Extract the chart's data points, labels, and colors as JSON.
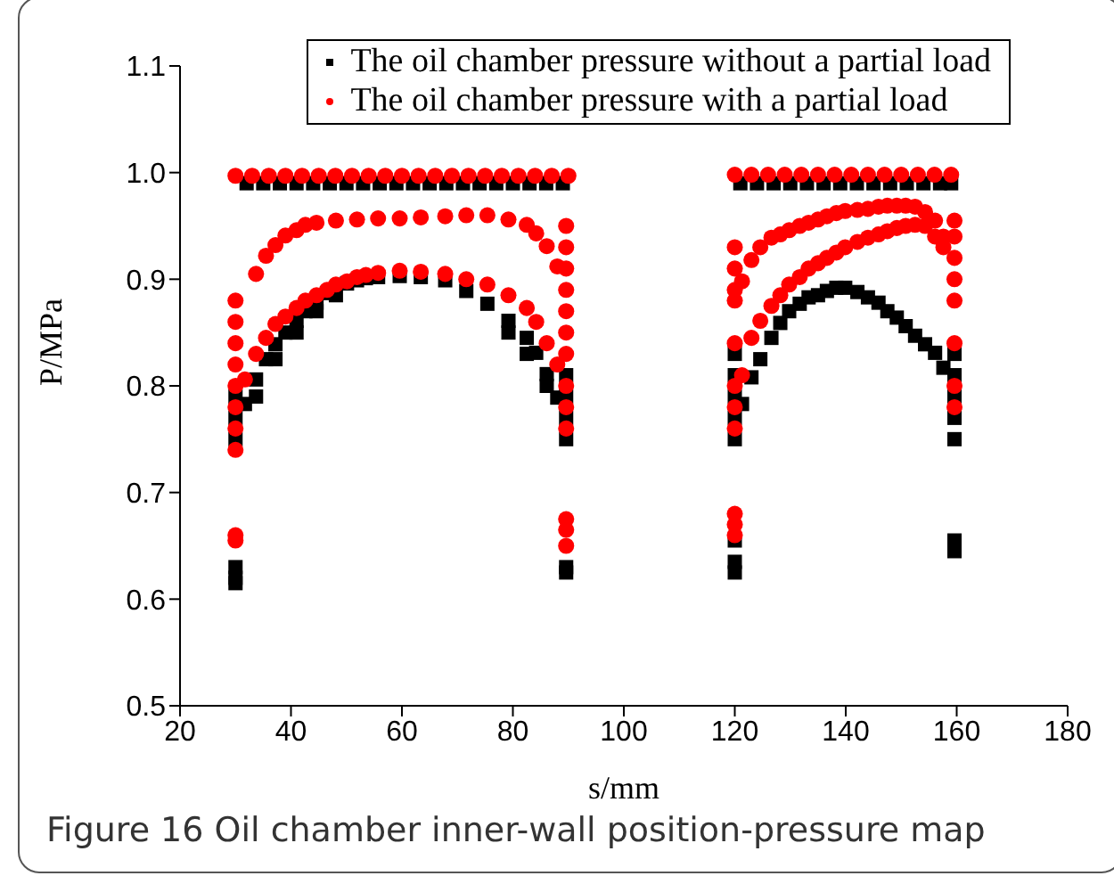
{
  "chart_data": {
    "type": "scatter",
    "xlabel": "s/mm",
    "ylabel": "P/MPa",
    "annotations": [
      "Figure 16  Oil chamber inner-wall position-pressure map"
    ],
    "xlim": [
      20,
      180
    ],
    "xticks": [
      20,
      40,
      60,
      80,
      100,
      120,
      140,
      160,
      180
    ],
    "ylim": [
      0.5,
      1.1
    ],
    "yticks": [
      0.5,
      0.6,
      0.7,
      0.8,
      0.9,
      {
        "value": 1,
        "label": "1.0"
      },
      1.1
    ],
    "grid": false,
    "legend": "top right",
    "series": [
      {
        "name": "The oil chamber pressure without a partial load",
        "color": "#000000",
        "marker": "square",
        "x": [
          30,
          30,
          30,
          30,
          30,
          30,
          31.7,
          33.7,
          35.5,
          37.2,
          39,
          41,
          42.6,
          44.6,
          46.5,
          50.1,
          51.9,
          53.5,
          55.7,
          59.6,
          63.4,
          67.8,
          71.6,
          75.4,
          79.2,
          82.5,
          84.2,
          86.1,
          88,
          33.7,
          37.2,
          41,
          44.6,
          48.1,
          79.2,
          82.5,
          86.1,
          89.6,
          89.6,
          89.6,
          89.6,
          89.6,
          89.6,
          32,
          35,
          38,
          41,
          44,
          47,
          50,
          53,
          56,
          59,
          62,
          65,
          68,
          71,
          74,
          77,
          80,
          83,
          86,
          89,
          120,
          120,
          120,
          120,
          120,
          120,
          120,
          120,
          121.3,
          123,
          124.6,
          126.6,
          128.2,
          129.8,
          131.7,
          133.3,
          135,
          136.6,
          138.3,
          139.9,
          142.1,
          144,
          145.9,
          147.5,
          149.2,
          150.8,
          152.5,
          154.3,
          156.1,
          157.6,
          159.6,
          159.6,
          159.6,
          159.6,
          159.6,
          159.6,
          159.6,
          121,
          124,
          127,
          130,
          133,
          136,
          139,
          142,
          145,
          148,
          151,
          154,
          157,
          159
        ],
        "values": [
          0.79,
          0.77,
          0.75,
          0.63,
          0.62,
          0.615,
          0.783,
          0.806,
          0.825,
          0.839,
          0.85,
          0.861,
          0.87,
          0.878,
          0.887,
          0.896,
          0.899,
          0.901,
          0.902,
          0.903,
          0.902,
          0.899,
          0.889,
          0.877,
          0.861,
          0.845,
          0.831,
          0.811,
          0.789,
          0.79,
          0.825,
          0.85,
          0.87,
          0.885,
          0.85,
          0.83,
          0.8,
          0.81,
          0.79,
          0.77,
          0.75,
          0.63,
          0.625,
          0.99,
          0.99,
          0.99,
          0.99,
          0.99,
          0.99,
          0.99,
          0.99,
          0.99,
          0.99,
          0.99,
          0.99,
          0.99,
          0.99,
          0.99,
          0.99,
          0.99,
          0.99,
          0.99,
          0.99,
          0.83,
          0.81,
          0.79,
          0.77,
          0.75,
          0.655,
          0.635,
          0.625,
          0.783,
          0.808,
          0.825,
          0.845,
          0.859,
          0.87,
          0.877,
          0.883,
          0.885,
          0.889,
          0.892,
          0.892,
          0.888,
          0.883,
          0.878,
          0.87,
          0.864,
          0.856,
          0.847,
          0.839,
          0.831,
          0.817,
          0.83,
          0.81,
          0.79,
          0.77,
          0.75,
          0.655,
          0.645,
          0.99,
          0.99,
          0.99,
          0.99,
          0.99,
          0.99,
          0.99,
          0.99,
          0.99,
          0.99,
          0.99,
          0.99,
          0.99,
          0.99
        ]
      },
      {
        "name": "The oil chamber pressure with a partial load",
        "color": "#ff0000",
        "marker": "circle",
        "x": [
          30,
          30,
          30,
          30,
          30,
          30,
          30,
          30,
          30,
          30,
          33.7,
          35.5,
          37.2,
          39,
          41,
          42.6,
          44.6,
          48.1,
          51.9,
          55.7,
          59.6,
          63.4,
          67.8,
          71.6,
          75.4,
          79.2,
          82.5,
          84.2,
          86.1,
          88,
          31.7,
          33.7,
          35.5,
          37.2,
          39,
          41,
          42.6,
          44.6,
          46.5,
          48.1,
          50.1,
          51.9,
          53.5,
          55.7,
          59.6,
          63.4,
          67.8,
          71.6,
          75.4,
          79.2,
          82.5,
          84.2,
          86.1,
          88,
          89.6,
          89.6,
          89.6,
          89.6,
          89.6,
          89.6,
          89.6,
          89.6,
          89.6,
          89.6,
          89.6,
          89.6,
          89.6,
          30,
          33,
          36,
          39,
          42,
          45,
          48,
          51,
          54,
          57,
          60,
          63,
          66,
          69,
          72,
          75,
          78,
          81,
          84,
          87,
          90,
          120,
          120,
          120,
          120,
          120,
          120,
          120,
          120,
          120,
          120,
          120,
          121.3,
          123,
          124.6,
          126.6,
          128.2,
          129.8,
          131.7,
          133.3,
          135,
          136.6,
          138.3,
          139.9,
          142.1,
          144,
          145.9,
          147.5,
          149.2,
          150.8,
          152.5,
          154.3,
          156.1,
          157.6,
          121.3,
          123,
          124.6,
          126.6,
          128.2,
          129.8,
          131.7,
          133.3,
          135,
          136.6,
          138.3,
          139.9,
          142.1,
          144,
          145.9,
          147.5,
          149.2,
          150.8,
          152.5,
          154.3,
          156.1,
          157.6,
          159.6,
          159.6,
          159.6,
          159.6,
          159.6,
          159.6,
          159.6,
          159.6,
          120,
          123,
          126,
          129,
          132,
          135,
          138,
          141,
          144,
          147,
          150,
          153,
          156,
          159
        ],
        "values": [
          0.88,
          0.86,
          0.84,
          0.82,
          0.8,
          0.78,
          0.76,
          0.74,
          0.66,
          0.655,
          0.905,
          0.922,
          0.932,
          0.941,
          0.946,
          0.951,
          0.953,
          0.955,
          0.956,
          0.957,
          0.957,
          0.958,
          0.959,
          0.96,
          0.96,
          0.956,
          0.951,
          0.943,
          0.931,
          0.912,
          0.806,
          0.83,
          0.845,
          0.858,
          0.865,
          0.873,
          0.88,
          0.885,
          0.89,
          0.895,
          0.898,
          0.902,
          0.904,
          0.906,
          0.908,
          0.907,
          0.905,
          0.9,
          0.895,
          0.885,
          0.873,
          0.86,
          0.84,
          0.82,
          0.95,
          0.93,
          0.91,
          0.89,
          0.87,
          0.85,
          0.83,
          0.8,
          0.78,
          0.76,
          0.675,
          0.665,
          0.65,
          0.997,
          0.997,
          0.997,
          0.997,
          0.997,
          0.997,
          0.997,
          0.997,
          0.997,
          0.997,
          0.997,
          0.997,
          0.997,
          0.997,
          0.997,
          0.997,
          0.997,
          0.997,
          0.997,
          0.997,
          0.997,
          0.93,
          0.91,
          0.89,
          0.88,
          0.84,
          0.8,
          0.78,
          0.76,
          0.68,
          0.67,
          0.66,
          0.898,
          0.918,
          0.93,
          0.939,
          0.942,
          0.946,
          0.95,
          0.953,
          0.956,
          0.959,
          0.962,
          0.964,
          0.965,
          0.966,
          0.968,
          0.969,
          0.969,
          0.969,
          0.968,
          0.963,
          0.955,
          0.94,
          0.81,
          0.845,
          0.861,
          0.875,
          0.885,
          0.895,
          0.902,
          0.91,
          0.915,
          0.92,
          0.925,
          0.93,
          0.935,
          0.939,
          0.942,
          0.945,
          0.948,
          0.95,
          0.951,
          0.95,
          0.94,
          0.93,
          0.955,
          0.94,
          0.92,
          0.9,
          0.88,
          0.84,
          0.8,
          0.78,
          0.998,
          0.998,
          0.998,
          0.998,
          0.998,
          0.998,
          0.998,
          0.998,
          0.998,
          0.998,
          0.998,
          0.998,
          0.998,
          0.998
        ]
      }
    ]
  }
}
